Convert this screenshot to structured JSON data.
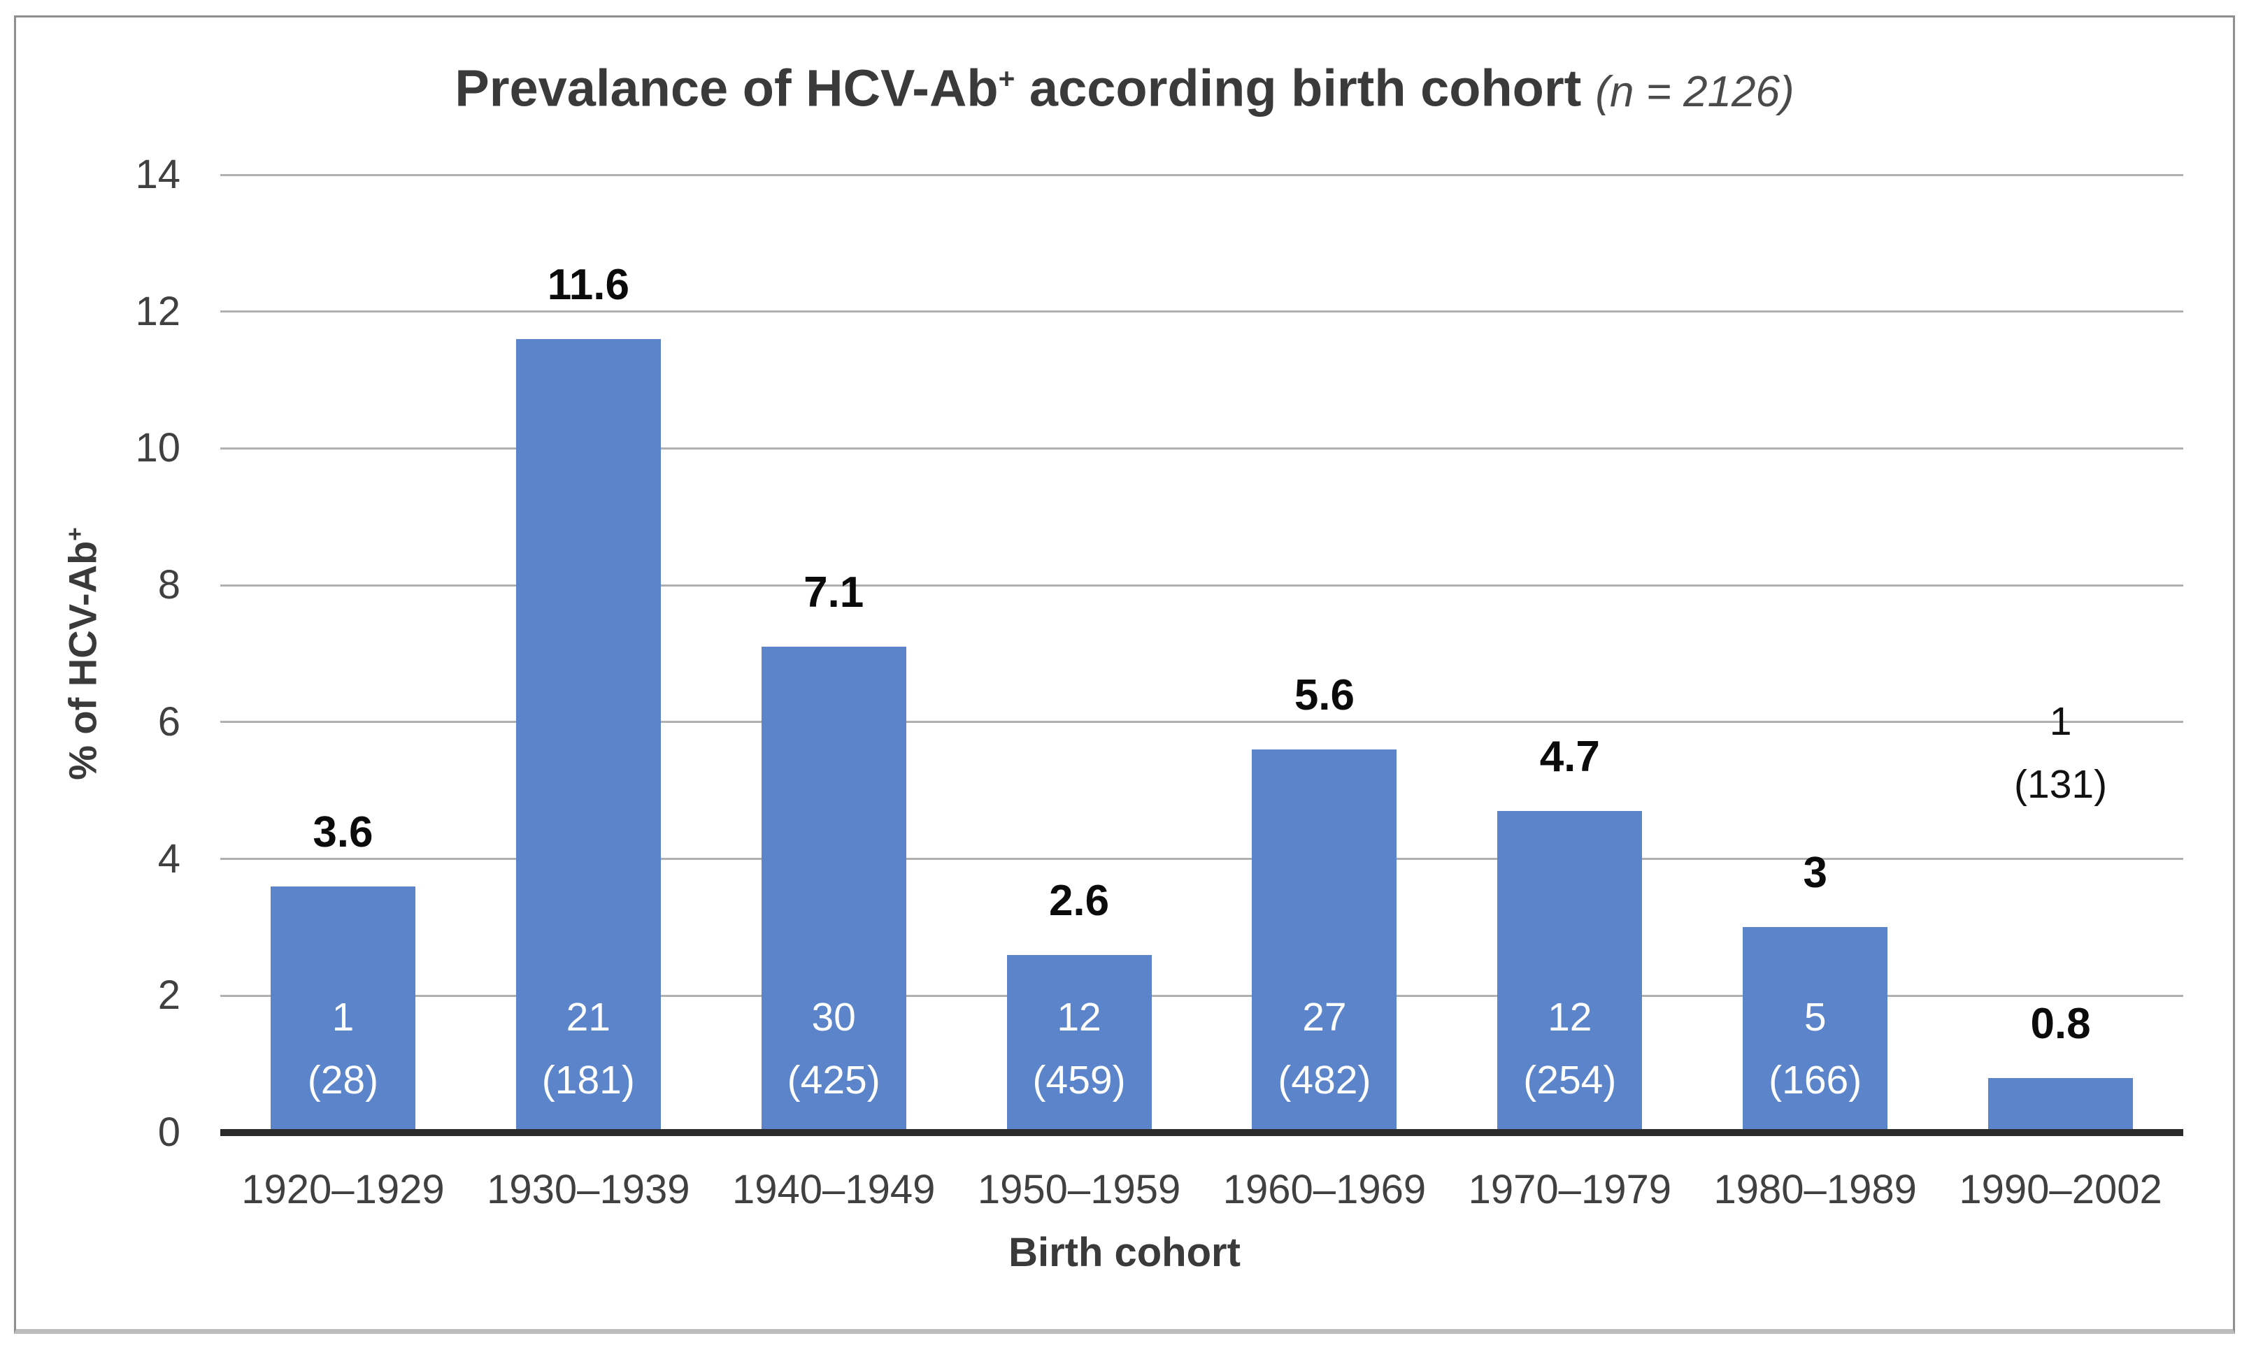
{
  "chart_data": {
    "type": "bar",
    "title": {
      "main": "Prevalance of HCV-Ab",
      "sup": "+",
      "rest": " according birth cohort",
      "note": "(n = 2126)"
    },
    "ylabel": {
      "text": "% of HCV-Ab",
      "sup": "+"
    },
    "xlabel": "Birth cohort",
    "categories": [
      "1920–1929",
      "1930–1939",
      "1940–1949",
      "1950–1959",
      "1960–1969",
      "1970–1979",
      "1980–1989",
      "1990–2002"
    ],
    "values": [
      3.6,
      11.6,
      7.1,
      2.6,
      5.6,
      4.7,
      3,
      0.8
    ],
    "value_labels": [
      "3.6",
      "11.6",
      "7.1",
      "2.6",
      "5.6",
      "4.7",
      "3",
      "0.8"
    ],
    "count_labels": [
      [
        "1",
        "(28)"
      ],
      [
        "21",
        "(181)"
      ],
      [
        "30",
        "(425)"
      ],
      [
        "12",
        "(459)"
      ],
      [
        "27",
        "(482)"
      ],
      [
        "12",
        "(254)"
      ],
      [
        "5",
        "(166)"
      ],
      [
        "1",
        "(131)"
      ]
    ],
    "count_label_placement": [
      "inside",
      "inside",
      "inside",
      "inside",
      "inside",
      "inside",
      "inside",
      "outside"
    ],
    "yticks": [
      "0",
      "2",
      "4",
      "6",
      "8",
      "10",
      "12",
      "14"
    ],
    "ylim": [
      0,
      14
    ],
    "grid": "horizontal",
    "legend_position": "none",
    "bar_color": "#5b84cb",
    "gridline_color": "#b0b0b0",
    "baseline_color": "#2b2b2b",
    "text_color": "#3a3a3a",
    "value_label_color": "#0b0b0b",
    "count_inside_color": "#ffffff"
  }
}
